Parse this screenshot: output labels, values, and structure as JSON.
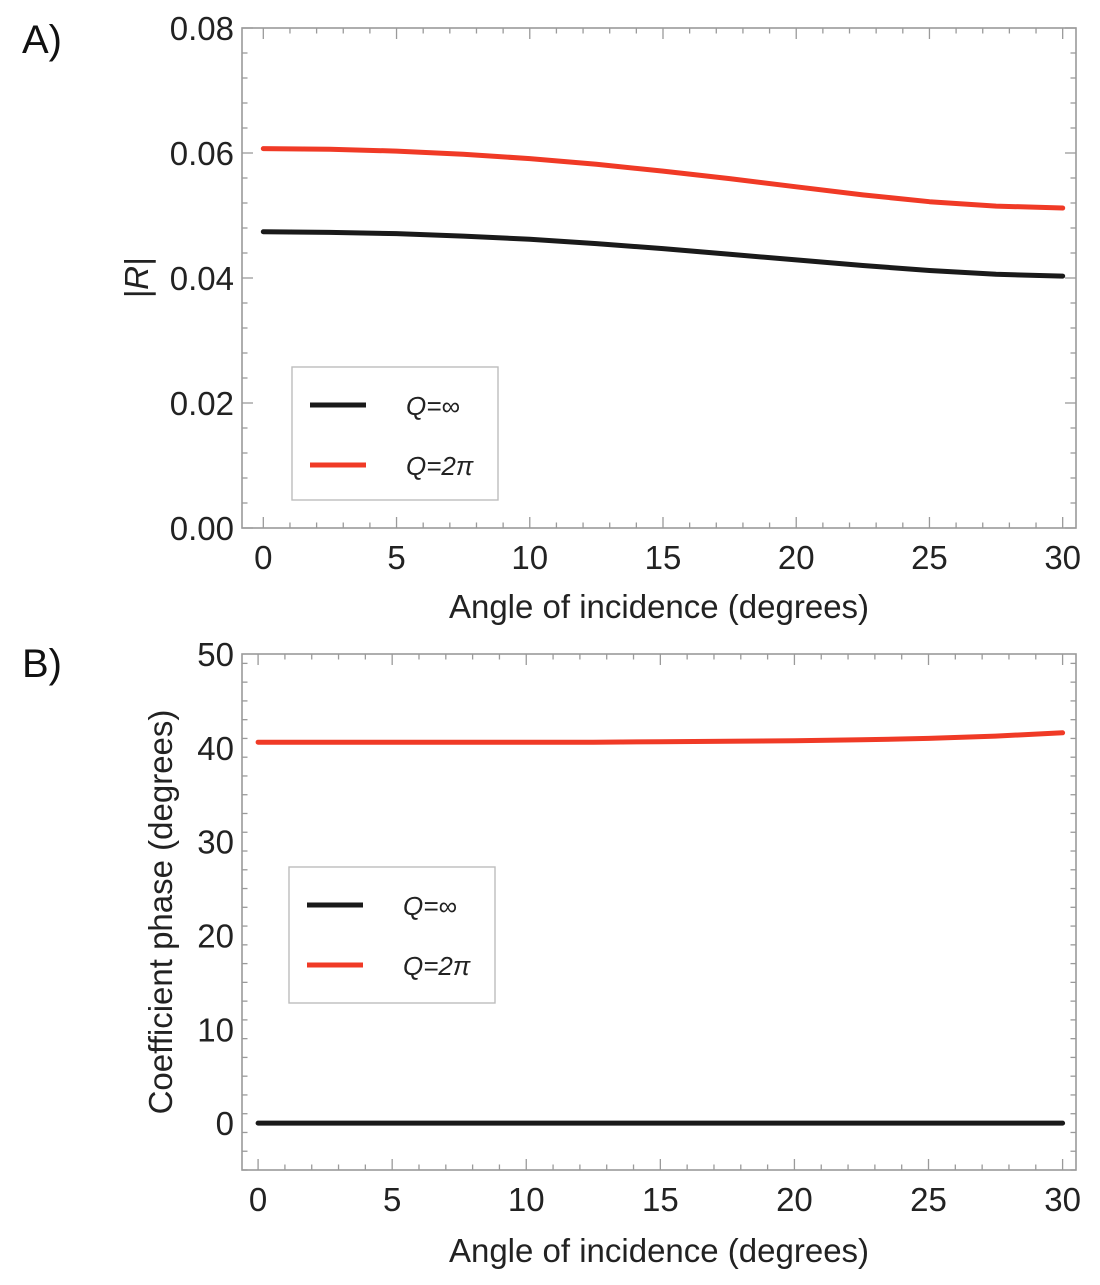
{
  "chart_data": [
    {
      "panel_label": "A)",
      "type": "line",
      "title": "",
      "xlabel": "Angle of incidence (degrees)",
      "ylabel": "|R|",
      "xlim": [
        -0.8,
        30.5
      ],
      "ylim": [
        0.0,
        0.08
      ],
      "xticks": [
        0,
        5,
        10,
        15,
        20,
        25,
        30
      ],
      "xtick_labels": [
        "0",
        "5",
        "10",
        "15",
        "20",
        "25",
        "30"
      ],
      "yticks": [
        0.0,
        0.02,
        0.04,
        0.06,
        0.08
      ],
      "ytick_labels": [
        "0.00",
        "0.02",
        "0.04",
        "0.06",
        "0.08"
      ],
      "grid": false,
      "legend_position": "lower-left",
      "x": [
        0,
        2.5,
        5,
        7.5,
        10,
        12.5,
        15,
        17.5,
        20,
        22.5,
        25,
        27.5,
        30
      ],
      "series": [
        {
          "name": "Q=∞",
          "color": "#1a1a1a",
          "values": [
            0.0474,
            0.0473,
            0.0471,
            0.0467,
            0.0462,
            0.0455,
            0.0447,
            0.0438,
            0.0429,
            0.042,
            0.0412,
            0.0406,
            0.0403
          ]
        },
        {
          "name": "Q=2π",
          "color": "#f03a26",
          "values": [
            0.0607,
            0.0606,
            0.0603,
            0.0598,
            0.0591,
            0.0582,
            0.0571,
            0.0559,
            0.0546,
            0.0533,
            0.0522,
            0.0515,
            0.0512
          ]
        }
      ]
    },
    {
      "panel_label": "B)",
      "type": "line",
      "title": "",
      "xlabel": "Angle of incidence (degrees)",
      "ylabel": "Coefficient phase (degrees)",
      "xlim": [
        -0.6,
        30.5
      ],
      "ylim": [
        -5,
        50
      ],
      "xticks": [
        0,
        5,
        10,
        15,
        20,
        25,
        30
      ],
      "xtick_labels": [
        "0",
        "5",
        "10",
        "15",
        "20",
        "25",
        "30"
      ],
      "yticks": [
        0,
        10,
        20,
        30,
        40,
        50
      ],
      "ytick_labels": [
        "0",
        "10",
        "20",
        "30",
        "40",
        "50"
      ],
      "grid": false,
      "legend_position": "center-left",
      "x": [
        0,
        2.5,
        5,
        7.5,
        10,
        12.5,
        15,
        17.5,
        20,
        22.5,
        25,
        27.5,
        30
      ],
      "series": [
        {
          "name": "Q=∞",
          "color": "#1a1a1a",
          "values": [
            0,
            0,
            0,
            0,
            0,
            0,
            0,
            0,
            0,
            0,
            0,
            0,
            0
          ]
        },
        {
          "name": "Q=2π",
          "color": "#f03a26",
          "values": [
            40.6,
            40.6,
            40.6,
            40.6,
            40.6,
            40.6,
            40.65,
            40.7,
            40.75,
            40.85,
            41.0,
            41.25,
            41.6
          ]
        }
      ]
    }
  ]
}
